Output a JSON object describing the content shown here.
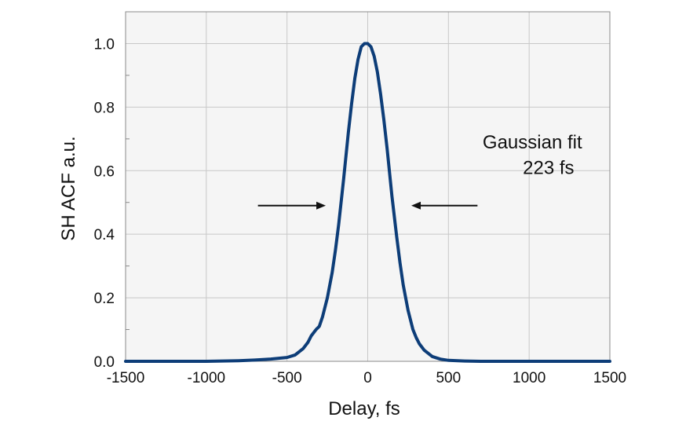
{
  "chart_data": {
    "type": "line",
    "title": "",
    "xlabel": "Delay, fs",
    "ylabel": "SH ACF a.u.",
    "xlim": [
      -1500,
      1500
    ],
    "ylim": [
      0,
      1.1
    ],
    "x_ticks": [
      -1500,
      -1000,
      -500,
      0,
      500,
      1000,
      1500
    ],
    "x_tick_labels": [
      "-1500",
      "-1000",
      "-500",
      "0",
      "500",
      "1000",
      "1500"
    ],
    "y_ticks": [
      0,
      0.2,
      0.4,
      0.6,
      0.8,
      1.0
    ],
    "y_tick_labels": [
      "0.0",
      "0.2",
      "0.4",
      "0.6",
      "0.8",
      "1.0"
    ],
    "grid": true,
    "colors": {
      "line": "#0d3d78",
      "plot_background": "#f5f5f5",
      "grid": "#c8c8c8",
      "frame": "#8a8a8a"
    },
    "series": [
      {
        "x": [
          -1500,
          -1200,
          -1000,
          -800,
          -700,
          -600,
          -500,
          -450,
          -400,
          -370,
          -350,
          -320,
          -300,
          -280,
          -250,
          -220,
          -200,
          -180,
          -150,
          -120,
          -100,
          -80,
          -60,
          -40,
          -20,
          0,
          20,
          40,
          60,
          80,
          100,
          120,
          150,
          180,
          200,
          220,
          250,
          280,
          300,
          320,
          350,
          400,
          450,
          500,
          600,
          700,
          800,
          1000,
          1200,
          1500
        ],
        "y": [
          0.0,
          0.0,
          0.0,
          0.002,
          0.004,
          0.007,
          0.012,
          0.02,
          0.04,
          0.06,
          0.08,
          0.1,
          0.11,
          0.14,
          0.2,
          0.28,
          0.35,
          0.43,
          0.57,
          0.72,
          0.81,
          0.89,
          0.95,
          0.99,
          1.0,
          1.0,
          0.99,
          0.96,
          0.91,
          0.84,
          0.76,
          0.67,
          0.52,
          0.39,
          0.31,
          0.24,
          0.16,
          0.1,
          0.075,
          0.055,
          0.035,
          0.015,
          0.007,
          0.003,
          0.001,
          0.0,
          0.0,
          0.0,
          0.0,
          0.0
        ]
      }
    ],
    "annotations": [
      {
        "text": "Gaussian fit",
        "x": 1020,
        "y": 0.67
      },
      {
        "text": "223 fs",
        "x": 1120,
        "y": 0.59
      }
    ],
    "arrows": [
      {
        "from_x": -680,
        "to_x": -260,
        "y": 0.49
      },
      {
        "from_x": 680,
        "to_x": 270,
        "y": 0.49
      }
    ]
  }
}
